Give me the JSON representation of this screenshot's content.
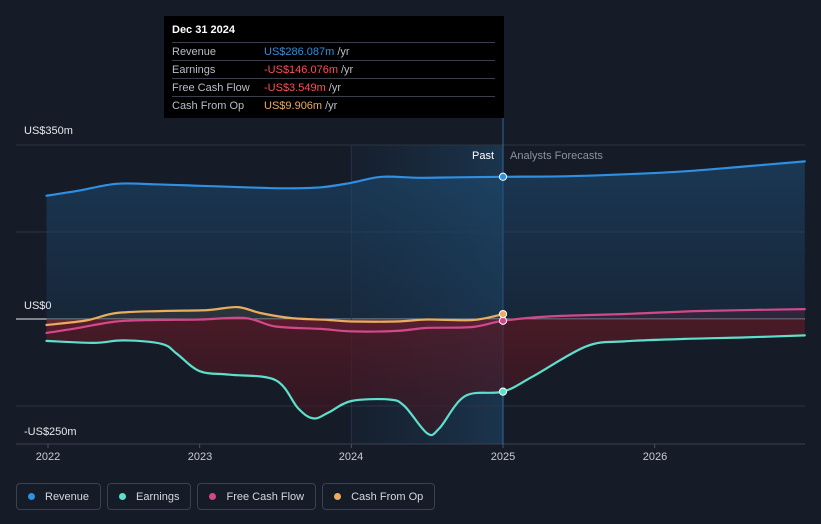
{
  "chart_data": {
    "type": "line",
    "x_ticks": [
      "2022",
      "2023",
      "2024",
      "2025",
      "2026"
    ],
    "y_ticks": [
      "US$350m",
      "US$0",
      "-US$250m"
    ],
    "ylim": [
      -250,
      350
    ],
    "xlim": [
      2021.8,
      2026.99
    ],
    "region_labels": {
      "past": "Past",
      "forecast": "Analysts Forecasts"
    },
    "past_end": 2025.0,
    "series": [
      {
        "name": "Revenue",
        "color": "#2f8fe0",
        "points": [
          [
            2021.99,
            248
          ],
          [
            2022.2,
            258
          ],
          [
            2022.45,
            272
          ],
          [
            2022.7,
            271
          ],
          [
            2023.0,
            268
          ],
          [
            2023.3,
            265
          ],
          [
            2023.55,
            263
          ],
          [
            2023.8,
            265
          ],
          [
            2024.0,
            274
          ],
          [
            2024.2,
            286
          ],
          [
            2024.45,
            284
          ],
          [
            2024.7,
            285
          ],
          [
            2025.0,
            286.087
          ],
          [
            2025.4,
            287
          ],
          [
            2025.8,
            291
          ],
          [
            2026.2,
            297
          ],
          [
            2026.6,
            307
          ],
          [
            2026.99,
            317
          ]
        ]
      },
      {
        "name": "Earnings",
        "color": "#5ce0cc",
        "points": [
          [
            2021.99,
            -44
          ],
          [
            2022.3,
            -48
          ],
          [
            2022.5,
            -43
          ],
          [
            2022.75,
            -50
          ],
          [
            2022.85,
            -70
          ],
          [
            2023.0,
            -105
          ],
          [
            2023.2,
            -112
          ],
          [
            2023.5,
            -123
          ],
          [
            2023.65,
            -180
          ],
          [
            2023.75,
            -200
          ],
          [
            2023.85,
            -188
          ],
          [
            2024.0,
            -165
          ],
          [
            2024.25,
            -162
          ],
          [
            2024.35,
            -175
          ],
          [
            2024.5,
            -230
          ],
          [
            2024.58,
            -220
          ],
          [
            2024.75,
            -155
          ],
          [
            2025.0,
            -146.076
          ],
          [
            2025.2,
            -115
          ],
          [
            2025.55,
            -55
          ],
          [
            2025.8,
            -45
          ],
          [
            2026.2,
            -40
          ],
          [
            2026.6,
            -37
          ],
          [
            2026.99,
            -33
          ]
        ]
      },
      {
        "name": "Free Cash Flow",
        "color": "#d2498a",
        "points": [
          [
            2021.99,
            -28
          ],
          [
            2022.2,
            -18
          ],
          [
            2022.45,
            -5
          ],
          [
            2022.7,
            -2
          ],
          [
            2023.0,
            -1
          ],
          [
            2023.3,
            2
          ],
          [
            2023.5,
            -15
          ],
          [
            2023.8,
            -20
          ],
          [
            2024.0,
            -25
          ],
          [
            2024.3,
            -24
          ],
          [
            2024.5,
            -18
          ],
          [
            2024.8,
            -16
          ],
          [
            2025.0,
            -3.549
          ],
          [
            2025.3,
            5
          ],
          [
            2025.8,
            10
          ],
          [
            2026.3,
            16
          ],
          [
            2026.99,
            20
          ]
        ]
      },
      {
        "name": "Cash From Op",
        "color": "#e8ae5e",
        "points": [
          [
            2021.99,
            -12
          ],
          [
            2022.25,
            -3
          ],
          [
            2022.45,
            12
          ],
          [
            2022.75,
            16
          ],
          [
            2023.05,
            18
          ],
          [
            2023.25,
            24
          ],
          [
            2023.4,
            12
          ],
          [
            2023.6,
            2
          ],
          [
            2023.85,
            -2
          ],
          [
            2024.0,
            -5
          ],
          [
            2024.3,
            -5
          ],
          [
            2024.5,
            -1
          ],
          [
            2024.8,
            -2
          ],
          [
            2025.0,
            9.906
          ]
        ]
      }
    ],
    "tooltip": {
      "date": "Dec 31 2024",
      "rows": [
        {
          "name": "Revenue",
          "value": "US$286.087m",
          "unit": "/yr",
          "color": "#2f8fe0"
        },
        {
          "name": "Earnings",
          "value": "-US$146.076m",
          "unit": "/yr",
          "color": "#ff4d5a"
        },
        {
          "name": "Free Cash Flow",
          "value": "-US$3.549m",
          "unit": "/yr",
          "color": "#ff4d5a"
        },
        {
          "name": "Cash From Op",
          "value": "US$9.906m",
          "unit": "/yr",
          "color": "#e8ae5e"
        }
      ]
    },
    "legend": [
      {
        "name": "Revenue",
        "color": "#2f8fe0"
      },
      {
        "name": "Earnings",
        "color": "#5ce0cc"
      },
      {
        "name": "Free Cash Flow",
        "color": "#d2498a"
      },
      {
        "name": "Cash From Op",
        "color": "#e8ae5e"
      }
    ]
  }
}
